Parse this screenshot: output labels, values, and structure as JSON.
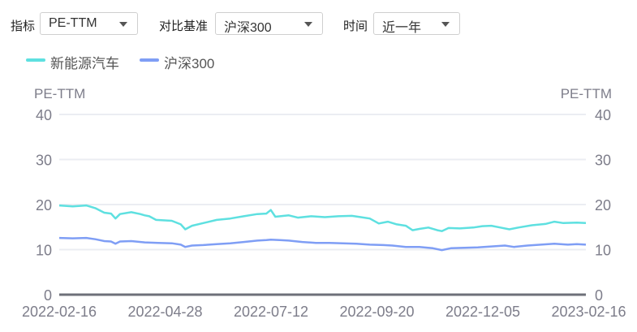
{
  "controls": {
    "indicator_label": "指标",
    "indicator_value": "PE-TTM",
    "benchmark_label": "对比基准",
    "benchmark_value": "沪深300",
    "time_label": "时间",
    "time_value": "近一年"
  },
  "colors": {
    "series1": "#5ee0e0",
    "series2": "#7f9ef5",
    "axis_text": "#7d7d8a",
    "grid": "#ebedf2",
    "baseline": "#6e7079"
  },
  "chart_data": {
    "type": "line",
    "left_axis_label": "PE-TTM",
    "right_axis_label": "PE-TTM",
    "ylim": [
      0,
      40
    ],
    "yticks": [
      "0",
      "10",
      "20",
      "30",
      "40"
    ],
    "xtick_labels": [
      "2022-02-16",
      "2022-04-28",
      "2022-07-12",
      "2022-09-20",
      "2022-12-05",
      "2023-02-16"
    ],
    "grid": true,
    "legend_position": "top-left",
    "series": [
      {
        "name": "新能源汽车",
        "points": [
          [
            0,
            19.8
          ],
          [
            0.03,
            19.6
          ],
          [
            0.06,
            19.8
          ],
          [
            0.08,
            19.2
          ],
          [
            0.1,
            18.2
          ],
          [
            0.115,
            18.0
          ],
          [
            0.125,
            16.9
          ],
          [
            0.135,
            17.9
          ],
          [
            0.16,
            18.3
          ],
          [
            0.18,
            17.9
          ],
          [
            0.19,
            17.6
          ],
          [
            0.2,
            17.4
          ],
          [
            0.215,
            16.6
          ],
          [
            0.25,
            16.4
          ],
          [
            0.27,
            15.6
          ],
          [
            0.28,
            14.5
          ],
          [
            0.295,
            15.3
          ],
          [
            0.32,
            15.9
          ],
          [
            0.35,
            16.6
          ],
          [
            0.38,
            16.9
          ],
          [
            0.41,
            17.4
          ],
          [
            0.44,
            17.9
          ],
          [
            0.46,
            18.0
          ],
          [
            0.47,
            18.8
          ],
          [
            0.48,
            17.3
          ],
          [
            0.51,
            17.6
          ],
          [
            0.53,
            17.1
          ],
          [
            0.56,
            17.4
          ],
          [
            0.59,
            17.2
          ],
          [
            0.62,
            17.4
          ],
          [
            0.65,
            17.5
          ],
          [
            0.67,
            17.2
          ],
          [
            0.69,
            16.9
          ],
          [
            0.71,
            15.8
          ],
          [
            0.73,
            16.2
          ],
          [
            0.75,
            15.6
          ],
          [
            0.77,
            15.3
          ],
          [
            0.785,
            14.3
          ],
          [
            0.8,
            14.6
          ],
          [
            0.82,
            14.9
          ],
          [
            0.84,
            14.3
          ],
          [
            0.85,
            14.1
          ],
          [
            0.865,
            14.8
          ],
          [
            0.89,
            14.7
          ],
          [
            0.92,
            14.9
          ],
          [
            0.94,
            15.2
          ],
          [
            0.96,
            15.3
          ],
          [
            0.98,
            14.9
          ],
          [
            1.0,
            14.5
          ],
          [
            1.02,
            14.9
          ],
          [
            1.05,
            15.4
          ],
          [
            1.08,
            15.7
          ],
          [
            1.1,
            16.2
          ],
          [
            1.12,
            15.9
          ],
          [
            1.15,
            16.0
          ],
          [
            1.17,
            15.9
          ]
        ]
      },
      {
        "name": "沪深300",
        "points": [
          [
            0,
            12.6
          ],
          [
            0.03,
            12.5
          ],
          [
            0.06,
            12.6
          ],
          [
            0.08,
            12.3
          ],
          [
            0.1,
            11.9
          ],
          [
            0.115,
            11.8
          ],
          [
            0.125,
            11.3
          ],
          [
            0.135,
            11.8
          ],
          [
            0.16,
            11.9
          ],
          [
            0.19,
            11.6
          ],
          [
            0.22,
            11.5
          ],
          [
            0.25,
            11.4
          ],
          [
            0.27,
            11.1
          ],
          [
            0.28,
            10.6
          ],
          [
            0.295,
            10.9
          ],
          [
            0.32,
            11.0
          ],
          [
            0.35,
            11.2
          ],
          [
            0.38,
            11.4
          ],
          [
            0.41,
            11.7
          ],
          [
            0.44,
            12.0
          ],
          [
            0.46,
            12.1
          ],
          [
            0.47,
            12.2
          ],
          [
            0.49,
            12.1
          ],
          [
            0.51,
            12.0
          ],
          [
            0.54,
            11.7
          ],
          [
            0.57,
            11.5
          ],
          [
            0.6,
            11.5
          ],
          [
            0.63,
            11.4
          ],
          [
            0.66,
            11.3
          ],
          [
            0.69,
            11.1
          ],
          [
            0.72,
            11.0
          ],
          [
            0.74,
            10.9
          ],
          [
            0.77,
            10.6
          ],
          [
            0.8,
            10.6
          ],
          [
            0.83,
            10.3
          ],
          [
            0.85,
            9.9
          ],
          [
            0.87,
            10.3
          ],
          [
            0.9,
            10.4
          ],
          [
            0.93,
            10.5
          ],
          [
            0.96,
            10.7
          ],
          [
            0.99,
            10.9
          ],
          [
            1.01,
            10.6
          ],
          [
            1.04,
            10.9
          ],
          [
            1.07,
            11.1
          ],
          [
            1.1,
            11.3
          ],
          [
            1.13,
            11.1
          ],
          [
            1.15,
            11.2
          ],
          [
            1.17,
            11.1
          ]
        ]
      }
    ]
  }
}
